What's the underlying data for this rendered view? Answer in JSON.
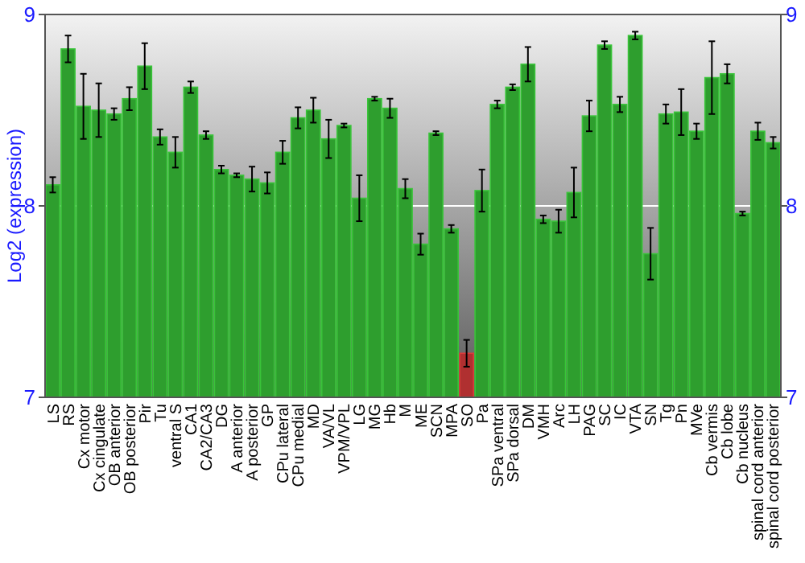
{
  "chart_data": {
    "type": "bar",
    "ylabel": "Log2 (expression)",
    "categories": [
      "LS",
      "RS",
      "Cx motor",
      "Cx cingulate",
      "OB anterior",
      "OB posterior",
      "Pir",
      "Tu",
      "ventral S",
      "CA1",
      "CA2/CA3",
      "DG",
      "A anterior",
      "A posterior",
      "GP",
      "CPu lateral",
      "CPu medial",
      "MD",
      "VA/VL",
      "VPM/VPL",
      "LG",
      "MG",
      "Hb",
      "M",
      "ME",
      "SCN",
      "MPA",
      "SO",
      "Pa",
      "SPa ventral",
      "SPa dorsal",
      "DM",
      "VMH",
      "Arc",
      "LH",
      "PAG",
      "SC",
      "IC",
      "VTA",
      "SN",
      "Tg",
      "Pn",
      "MVe",
      "Cb vermis",
      "Cb lobe",
      "Cb nucleus",
      "spinal cord anterior",
      "spinal cord posterior"
    ],
    "values": [
      8.11,
      8.82,
      8.52,
      8.5,
      8.48,
      8.56,
      8.73,
      8.36,
      8.28,
      8.62,
      8.37,
      8.19,
      8.16,
      8.14,
      8.12,
      8.28,
      8.46,
      8.5,
      8.35,
      8.42,
      8.04,
      8.56,
      8.51,
      8.09,
      7.8,
      8.38,
      7.88,
      7.23,
      8.08,
      8.53,
      8.62,
      8.74,
      7.93,
      7.92,
      8.07,
      8.47,
      8.84,
      8.53,
      8.89,
      7.75,
      8.48,
      8.49,
      8.39,
      8.67,
      8.69,
      7.96,
      8.39,
      8.33
    ],
    "errors": [
      0.04,
      0.07,
      0.17,
      0.14,
      0.03,
      0.06,
      0.12,
      0.04,
      0.08,
      0.03,
      0.02,
      0.02,
      0.01,
      0.065,
      0.055,
      0.06,
      0.055,
      0.065,
      0.1,
      0.01,
      0.12,
      0.01,
      0.05,
      0.05,
      0.055,
      0.01,
      0.02,
      0.07,
      0.11,
      0.02,
      0.015,
      0.09,
      0.02,
      0.06,
      0.13,
      0.08,
      0.02,
      0.04,
      0.02,
      0.135,
      0.05,
      0.12,
      0.04,
      0.19,
      0.05,
      0.01,
      0.045,
      0.03
    ],
    "colors": [
      "#2e9e2e",
      "#2e9e2e",
      "#2e9e2e",
      "#2e9e2e",
      "#2e9e2e",
      "#2e9e2e",
      "#2e9e2e",
      "#2e9e2e",
      "#2e9e2e",
      "#2e9e2e",
      "#2e9e2e",
      "#2e9e2e",
      "#2e9e2e",
      "#2e9e2e",
      "#2e9e2e",
      "#2e9e2e",
      "#2e9e2e",
      "#2e9e2e",
      "#2e9e2e",
      "#2e9e2e",
      "#2e9e2e",
      "#2e9e2e",
      "#2e9e2e",
      "#2e9e2e",
      "#2e9e2e",
      "#2e9e2e",
      "#2e9e2e",
      "#b03030",
      "#2e9e2e",
      "#2e9e2e",
      "#2e9e2e",
      "#2e9e2e",
      "#2e9e2e",
      "#2e9e2e",
      "#2e9e2e",
      "#2e9e2e",
      "#2e9e2e",
      "#2e9e2e",
      "#2e9e2e",
      "#2e9e2e",
      "#2e9e2e",
      "#2e9e2e",
      "#2e9e2e",
      "#2e9e2e",
      "#2e9e2e",
      "#2e9e2e",
      "#2e9e2e",
      "#2e9e2e"
    ],
    "ylim": [
      7,
      9
    ],
    "yticks": [
      7,
      8,
      9
    ],
    "y2lim": [
      7,
      9
    ],
    "y2ticks": [
      7,
      8,
      9
    ],
    "grid": "y"
  }
}
